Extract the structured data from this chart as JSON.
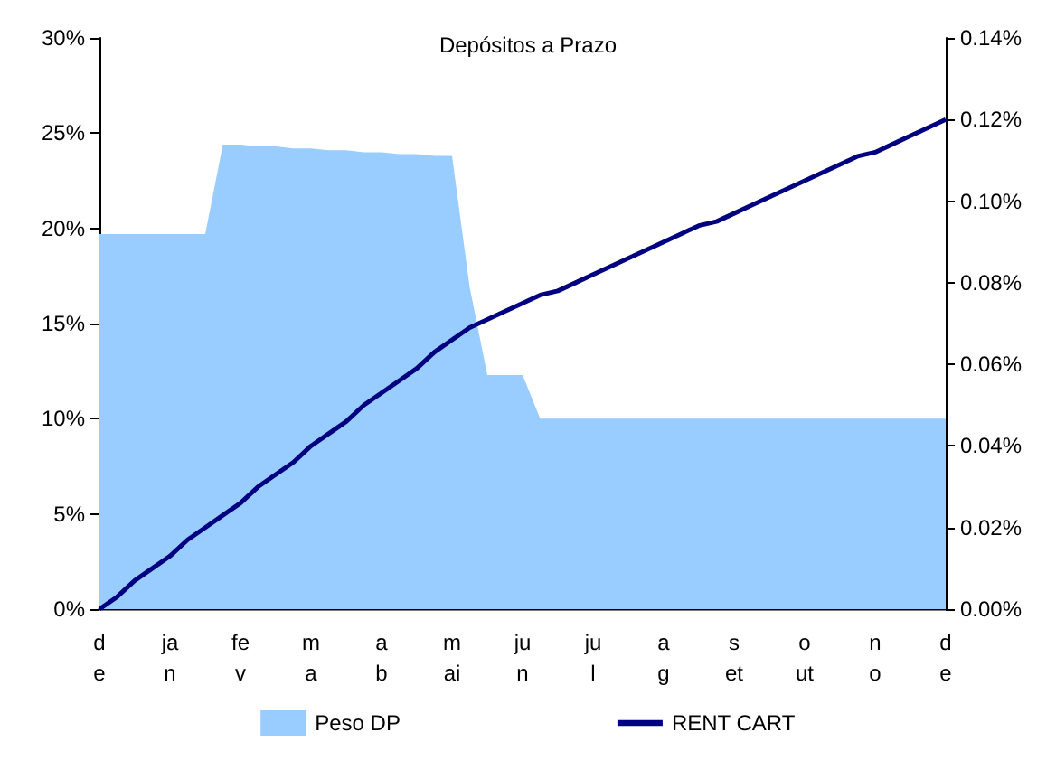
{
  "chart_data": {
    "type": "area",
    "title": "Depósitos a Prazo",
    "categories": [
      "d\ne",
      null,
      null,
      null,
      "ja\nn",
      null,
      null,
      null,
      "fe\nv",
      null,
      null,
      null,
      "m\na",
      null,
      null,
      null,
      "a\nb",
      null,
      null,
      null,
      "m\nai",
      null,
      null,
      null,
      "ju\nn",
      null,
      null,
      null,
      "ju\nl",
      null,
      null,
      null,
      "a\ng",
      null,
      null,
      null,
      "s\net",
      null,
      null,
      null,
      "o\nut",
      null,
      null,
      null,
      "n\no",
      null,
      null,
      null,
      "d\ne"
    ],
    "series": [
      {
        "name": "Peso DP",
        "color": "#99ccff",
        "values": [
          19.7,
          19.7,
          19.7,
          19.7,
          19.7,
          19.7,
          19.7,
          24.4,
          24.4,
          24.3,
          24.3,
          24.2,
          24.2,
          24.1,
          24.1,
          24.0,
          24.0,
          23.9,
          23.9,
          23.8,
          23.8,
          16.9,
          12.3,
          12.3,
          12.3,
          10.0,
          10.0,
          10.0,
          10.0,
          10.0,
          10.0,
          10.0,
          10.0,
          10.0,
          10.0,
          10.0,
          10.0,
          10.0,
          10.0,
          10.0,
          10.0,
          10.0,
          10.0,
          10.0,
          10.0,
          10.0,
          10.0,
          10.0,
          10.0
        ]
      },
      {
        "name": "RENT CART",
        "type": "line",
        "axis": "y2",
        "color": "#000080",
        "values": [
          0,
          0.003,
          0.007,
          0.01,
          0.013,
          0.017,
          0.02,
          0.023,
          0.026,
          0.03,
          0.033,
          0.036,
          0.04,
          0.043,
          0.046,
          0.05,
          0.053,
          0.056,
          0.059,
          0.063,
          0.066,
          0.069,
          0.071,
          0.073,
          0.075,
          0.077,
          0.078,
          0.08,
          0.082,
          0.084,
          0.086,
          0.088,
          0.09,
          0.092,
          0.094,
          0.095,
          0.097,
          0.099,
          0.101,
          0.103,
          0.105,
          0.107,
          0.109,
          0.111,
          0.112,
          0.114,
          0.116,
          0.118,
          0.12
        ]
      }
    ],
    "ylim": [
      0,
      30
    ],
    "yticks": [
      {
        "value": 0,
        "label": "0%"
      },
      {
        "value": 5,
        "label": "5%"
      },
      {
        "value": 10,
        "label": "10%"
      },
      {
        "value": 15,
        "label": "15%"
      },
      {
        "value": 20,
        "label": "20%"
      },
      {
        "value": 25,
        "label": "25%"
      },
      {
        "value": 30,
        "label": "30%"
      }
    ],
    "y2lim": [
      0,
      0.14
    ],
    "y2ticks": [
      {
        "value": 0,
        "label": "0.00%"
      },
      {
        "value": 0.02,
        "label": "0.02%"
      },
      {
        "value": 0.04,
        "label": "0.04%"
      },
      {
        "value": 0.06,
        "label": "0.06%"
      },
      {
        "value": 0.08,
        "label": "0.08%"
      },
      {
        "value": 0.1,
        "label": "0.10%"
      },
      {
        "value": 0.12,
        "label": "0.12%"
      },
      {
        "value": 0.14,
        "label": "0.14%"
      }
    ],
    "legend": "bottom"
  }
}
